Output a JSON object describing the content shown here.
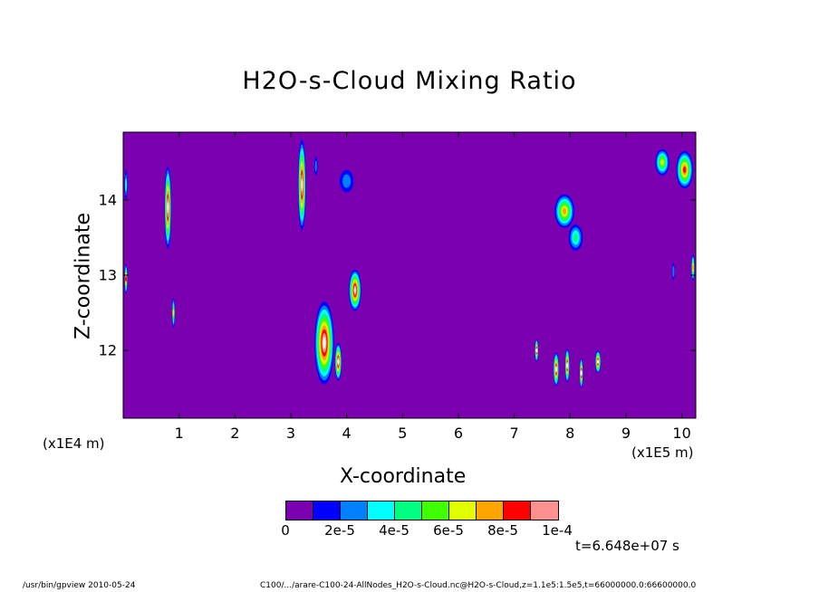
{
  "chart_data": {
    "type": "heatmap",
    "title": "H2O-s-Cloud Mixing Ratio",
    "xlabel": "X-coordinate",
    "ylabel": "Z-coordinate",
    "x_unit": "(x1E5 m)",
    "y_unit": "(x1E4 m)",
    "xlim": [
      0,
      10.25
    ],
    "ylim": [
      11.1,
      14.9
    ],
    "x_ticks": [
      "1",
      "2",
      "3",
      "4",
      "5",
      "6",
      "7",
      "8",
      "9",
      "10"
    ],
    "x_tick_values": [
      1,
      2,
      3,
      4,
      5,
      6,
      7,
      8,
      9,
      10
    ],
    "y_ticks": [
      "12",
      "13",
      "14"
    ],
    "y_tick_values": [
      12,
      13,
      14
    ],
    "background_color": "#7b00b0",
    "colorbar": {
      "colors": [
        "#7b00b0",
        "#0000ff",
        "#0080ff",
        "#00ffff",
        "#00ff80",
        "#40ff00",
        "#e0ff00",
        "#ffa500",
        "#ff0000",
        "#ff9090"
      ],
      "labels": [
        "0",
        "2e-5",
        "4e-5",
        "6e-5",
        "8e-5",
        "1e-4"
      ],
      "saturation_color": "#ffffff"
    },
    "cloud_features": [
      {
        "x": 0.8,
        "z": 13.9,
        "w": 0.12,
        "h": 1.1,
        "level": 10
      },
      {
        "x": 0.9,
        "z": 12.5,
        "w": 0.05,
        "h": 0.4,
        "level": 6
      },
      {
        "x": 3.2,
        "z": 14.2,
        "w": 0.14,
        "h": 1.2,
        "level": 10
      },
      {
        "x": 3.45,
        "z": 14.45,
        "w": 0.06,
        "h": 0.25,
        "level": 2
      },
      {
        "x": 4.0,
        "z": 14.25,
        "w": 0.25,
        "h": 0.3,
        "level": 2
      },
      {
        "x": 3.6,
        "z": 12.1,
        "w": 0.35,
        "h": 1.1,
        "level": 10
      },
      {
        "x": 3.85,
        "z": 11.85,
        "w": 0.12,
        "h": 0.5,
        "level": 10
      },
      {
        "x": 4.15,
        "z": 12.8,
        "w": 0.22,
        "h": 0.55,
        "level": 10
      },
      {
        "x": 0.05,
        "z": 12.95,
        "w": 0.05,
        "h": 0.4,
        "level": 8
      },
      {
        "x": 0.05,
        "z": 14.2,
        "w": 0.05,
        "h": 0.4,
        "level": 3
      },
      {
        "x": 7.9,
        "z": 13.85,
        "w": 0.35,
        "h": 0.45,
        "level": 7
      },
      {
        "x": 8.1,
        "z": 13.5,
        "w": 0.25,
        "h": 0.35,
        "level": 4
      },
      {
        "x": 7.4,
        "z": 12.0,
        "w": 0.06,
        "h": 0.3,
        "level": 10
      },
      {
        "x": 7.75,
        "z": 11.75,
        "w": 0.1,
        "h": 0.45,
        "level": 10
      },
      {
        "x": 7.95,
        "z": 11.8,
        "w": 0.08,
        "h": 0.45,
        "level": 10
      },
      {
        "x": 8.2,
        "z": 11.7,
        "w": 0.06,
        "h": 0.4,
        "level": 10
      },
      {
        "x": 8.5,
        "z": 11.85,
        "w": 0.1,
        "h": 0.3,
        "level": 10
      },
      {
        "x": 9.65,
        "z": 14.5,
        "w": 0.25,
        "h": 0.35,
        "level": 6
      },
      {
        "x": 10.05,
        "z": 14.4,
        "w": 0.3,
        "h": 0.5,
        "level": 8
      },
      {
        "x": 10.2,
        "z": 13.1,
        "w": 0.06,
        "h": 0.35,
        "level": 7
      },
      {
        "x": 9.85,
        "z": 13.05,
        "w": 0.04,
        "h": 0.25,
        "level": 2
      }
    ]
  },
  "time_info": "t=6.648e+07 s",
  "footer": {
    "left": "/usr/bin/gpview  2010-05-24",
    "right": "C100/.../arare-C100-24-AllNodes_H2O-s-Cloud.nc@H2O-s-Cloud,z=1.1e5:1.5e5,t=66000000.0:66600000.0"
  }
}
